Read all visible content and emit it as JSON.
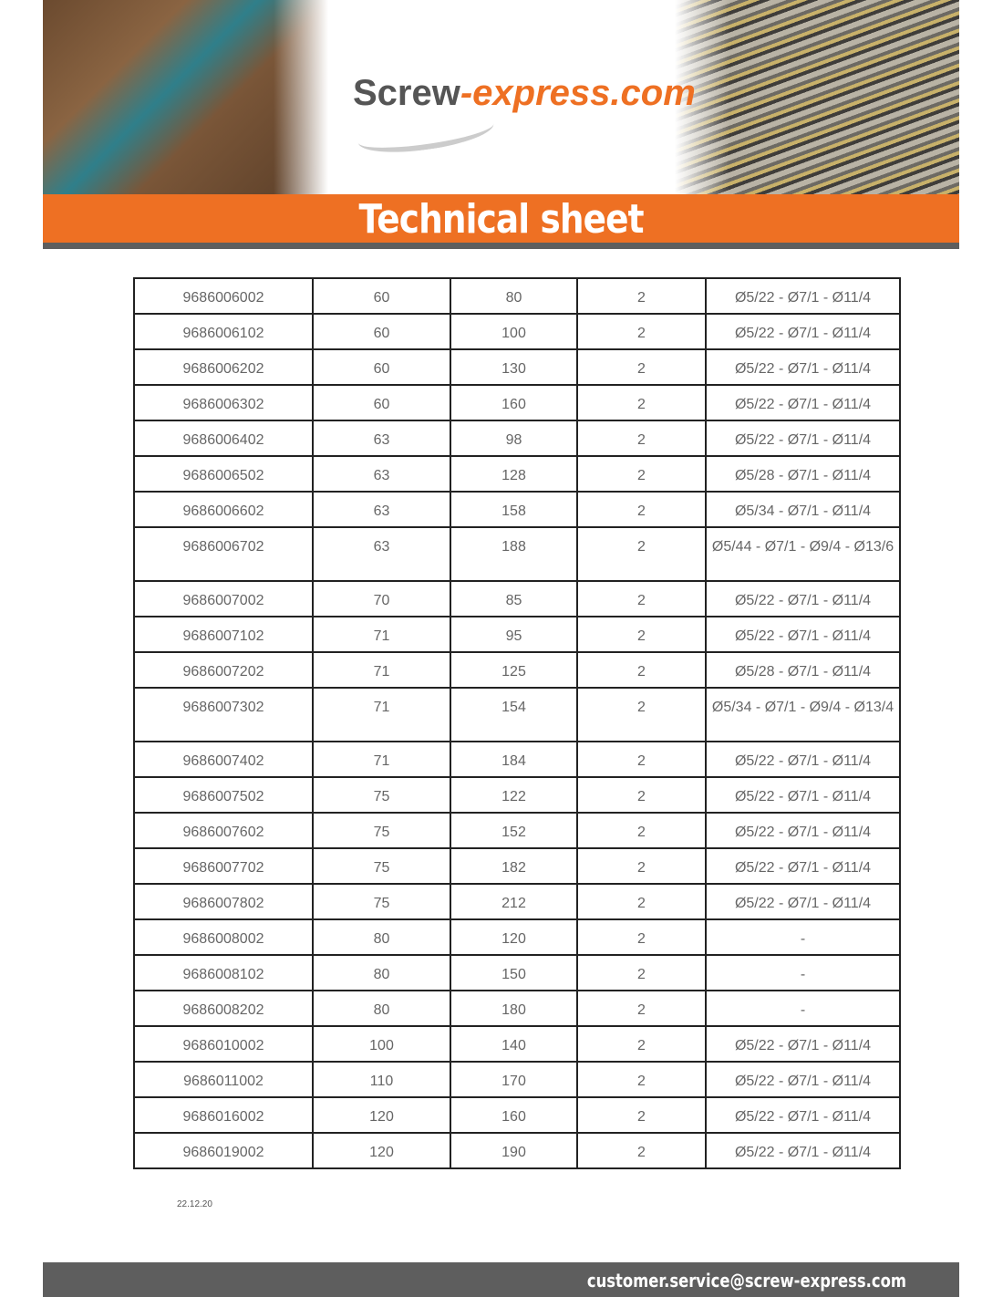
{
  "header": {
    "logo_part1": "Screw",
    "logo_part2": "-express.com",
    "title": "Technical sheet"
  },
  "table": {
    "rows": [
      [
        "9686006002",
        "60",
        "80",
        "2",
        "Ø5/22 - Ø7/1 - Ø11/4"
      ],
      [
        "9686006102",
        "60",
        "100",
        "2",
        "Ø5/22 - Ø7/1 - Ø11/4"
      ],
      [
        "9686006202",
        "60",
        "130",
        "2",
        "Ø5/22 - Ø7/1 - Ø11/4"
      ],
      [
        "9686006302",
        "60",
        "160",
        "2",
        "Ø5/22 - Ø7/1 - Ø11/4"
      ],
      [
        "9686006402",
        "63",
        "98",
        "2",
        "Ø5/22 - Ø7/1 - Ø11/4"
      ],
      [
        "9686006502",
        "63",
        "128",
        "2",
        "Ø5/28 - Ø7/1 - Ø11/4"
      ],
      [
        "9686006602",
        "63",
        "158",
        "2",
        "Ø5/34 - Ø7/1 - Ø11/4"
      ],
      [
        "9686006702",
        "63",
        "188",
        "2",
        "Ø5/44 - Ø7/1 - Ø9/4 - Ø13/6"
      ],
      [
        "9686007002",
        "70",
        "85",
        "2",
        "Ø5/22 - Ø7/1 - Ø11/4"
      ],
      [
        "9686007102",
        "71",
        "95",
        "2",
        "Ø5/22 - Ø7/1 - Ø11/4"
      ],
      [
        "9686007202",
        "71",
        "125",
        "2",
        "Ø5/28 - Ø7/1 - Ø11/4"
      ],
      [
        "9686007302",
        "71",
        "154",
        "2",
        "Ø5/34 - Ø7/1 - Ø9/4 - Ø13/4"
      ],
      [
        "9686007402",
        "71",
        "184",
        "2",
        "Ø5/22 - Ø7/1 - Ø11/4"
      ],
      [
        "9686007502",
        "75",
        "122",
        "2",
        "Ø5/22 - Ø7/1 - Ø11/4"
      ],
      [
        "9686007602",
        "75",
        "152",
        "2",
        "Ø5/22 - Ø7/1 - Ø11/4"
      ],
      [
        "9686007702",
        "75",
        "182",
        "2",
        "Ø5/22 - Ø7/1 - Ø11/4"
      ],
      [
        "9686007802",
        "75",
        "212",
        "2",
        "Ø5/22 - Ø7/1 - Ø11/4"
      ],
      [
        "9686008002",
        "80",
        "120",
        "2",
        "-"
      ],
      [
        "9686008102",
        "80",
        "150",
        "2",
        "-"
      ],
      [
        "9686008202",
        "80",
        "180",
        "2",
        "-"
      ],
      [
        "9686010002",
        "100",
        "140",
        "2",
        "Ø5/22 - Ø7/1 - Ø11/4"
      ],
      [
        "9686011002",
        "110",
        "170",
        "2",
        "Ø5/22 - Ø7/1 - Ø11/4"
      ],
      [
        "9686016002",
        "120",
        "160",
        "2",
        "Ø5/22 - Ø7/1 - Ø11/4"
      ],
      [
        "9686019002",
        "120",
        "190",
        "2",
        "Ø5/22 - Ø7/1 - Ø11/4"
      ]
    ]
  },
  "date": "22.12.20",
  "footer": {
    "email": "customer.service@screw-express.com"
  },
  "colors": {
    "accent": "#ee7023",
    "dark_bar": "#5e5e5e"
  }
}
